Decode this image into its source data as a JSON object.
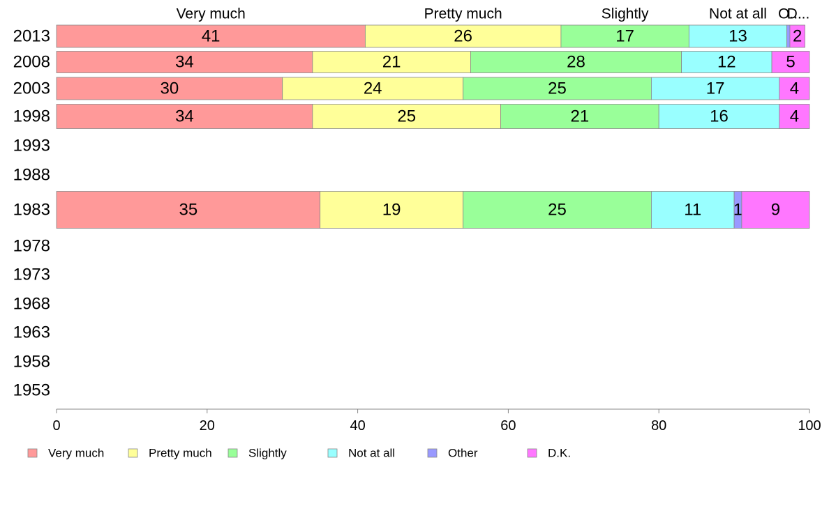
{
  "chart_data": {
    "type": "bar",
    "orientation": "horizontal",
    "stacked": true,
    "title": "",
    "xlabel": "",
    "ylabel": "",
    "xlim": [
      0,
      100
    ],
    "x_ticks": [
      0,
      20,
      40,
      60,
      80,
      100
    ],
    "categories": [
      "2013",
      "2008",
      "2003",
      "1998",
      "1993",
      "1988",
      "1983",
      "1978",
      "1973",
      "1968",
      "1963",
      "1958",
      "1953"
    ],
    "series": [
      {
        "name": "Very much",
        "color": "#ff9999",
        "values": [
          41,
          34,
          30,
          34,
          null,
          null,
          35,
          null,
          null,
          null,
          null,
          null,
          null
        ]
      },
      {
        "name": "Pretty much",
        "color": "#ffff99",
        "values": [
          26,
          21,
          24,
          25,
          null,
          null,
          19,
          null,
          null,
          null,
          null,
          null,
          null
        ]
      },
      {
        "name": "Slightly",
        "color": "#99ff99",
        "values": [
          17,
          28,
          25,
          21,
          null,
          null,
          25,
          null,
          null,
          null,
          null,
          null,
          null
        ]
      },
      {
        "name": "Not at all",
        "color": "#99ffff",
        "values": [
          13,
          12,
          17,
          16,
          null,
          null,
          11,
          null,
          null,
          null,
          null,
          null,
          null
        ]
      },
      {
        "name": "Other",
        "color": "#9999ff",
        "values": [
          0.4,
          0,
          0,
          0,
          null,
          null,
          1,
          null,
          null,
          null,
          null,
          null,
          null
        ]
      },
      {
        "name": "D.K.",
        "color": "#ff77ff",
        "values": [
          2,
          5,
          4,
          4,
          null,
          null,
          9,
          null,
          null,
          null,
          null,
          null,
          null
        ]
      }
    ],
    "top_labels": [
      "Very much",
      "Pretty much",
      "Slightly",
      "Not at all",
      "O...",
      "D..."
    ],
    "legend": {
      "position": "bottom",
      "items": [
        "Very much",
        "Pretty much",
        "Slightly",
        "Not at all",
        "Other",
        "D.K."
      ]
    },
    "grid": false
  }
}
